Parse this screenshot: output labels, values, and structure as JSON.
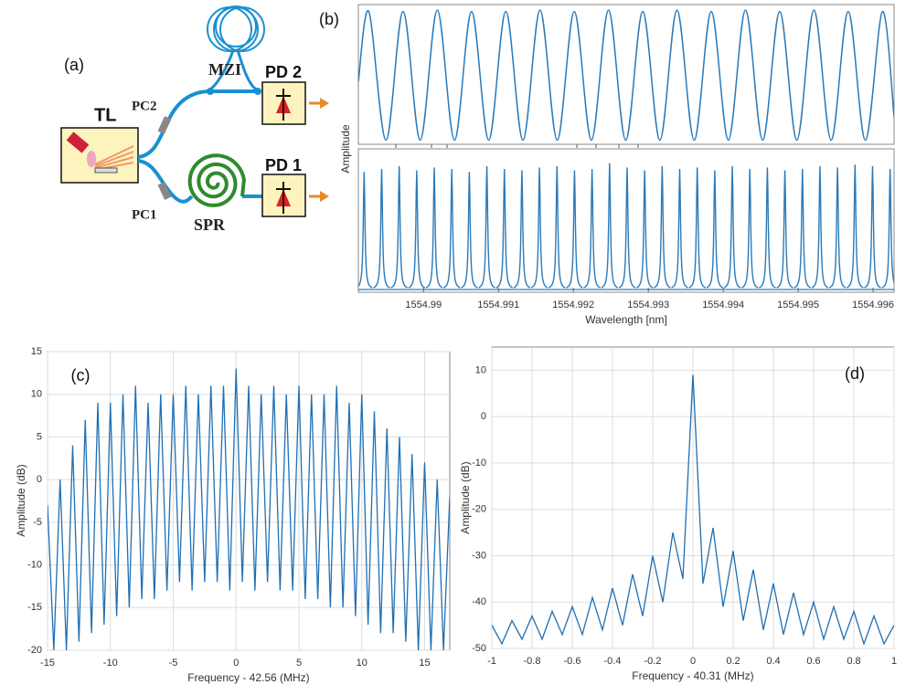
{
  "diagram": {
    "label": "(a)",
    "nodes": {
      "tl": "TL",
      "pc2": "PC2",
      "pc1": "PC1",
      "mzi": "MZI",
      "spr": "SPR",
      "pd2": "PD 2",
      "pd1": "PD 1"
    }
  },
  "chart_data": [
    {
      "type": "line",
      "label": "(b)",
      "y_label": "Amplitude",
      "color": "#2a7ab9",
      "xlim": [
        1554.98913,
        1554.99628
      ],
      "ylim": [
        0,
        1
      ],
      "x": [
        1554.98913,
        1554.98927,
        1554.989499,
        1554.989727,
        1554.989956,
        1554.990184,
        1554.990413,
        1554.990641,
        1554.99087,
        1554.991098,
        1554.991327,
        1554.991555,
        1554.991784,
        1554.992012,
        1554.992241,
        1554.992469,
        1554.992698,
        1554.992926,
        1554.993155,
        1554.993383,
        1554.993612,
        1554.99384,
        1554.994069,
        1554.994297,
        1554.994526,
        1554.994754,
        1554.994983,
        1554.995211,
        1554.99544,
        1554.995668,
        1554.995897,
        1554.996125,
        1554.99628
      ],
      "values": [
        0.45,
        0.95,
        0.03,
        0.95,
        0.03,
        0.96,
        0.03,
        0.95,
        0.03,
        0.95,
        0.03,
        0.96,
        0.03,
        0.95,
        0.03,
        0.96,
        0.03,
        0.95,
        0.03,
        0.96,
        0.03,
        0.95,
        0.03,
        0.96,
        0.03,
        0.95,
        0.03,
        0.96,
        0.03,
        0.95,
        0.03,
        0.95,
        0.2
      ]
    },
    {
      "type": "peaks",
      "x_label": "Wavelength [nm]",
      "color": "#2a7ab9",
      "xlim": [
        1554.98913,
        1554.99628
      ],
      "ylim": [
        0,
        1
      ],
      "xticks": [
        1554.99,
        1554.991,
        1554.992,
        1554.993,
        1554.994,
        1554.995,
        1554.996
      ],
      "x": [
        1554.989207,
        1554.989441,
        1554.989675,
        1554.989909,
        1554.990143,
        1554.990377,
        1554.990611,
        1554.990845,
        1554.991079,
        1554.991313,
        1554.991547,
        1554.991781,
        1554.992015,
        1554.992249,
        1554.992483,
        1554.992717,
        1554.992951,
        1554.993185,
        1554.993419,
        1554.993653,
        1554.993887,
        1554.994121,
        1554.994355,
        1554.994589,
        1554.994823,
        1554.995057,
        1554.995291,
        1554.995525,
        1554.995759,
        1554.995993,
        1554.996227
      ],
      "values": [
        0.84,
        0.86,
        0.88,
        0.85,
        0.87,
        0.86,
        0.84,
        0.88,
        0.86,
        0.85,
        0.87,
        0.88,
        0.85,
        0.86,
        0.9,
        0.87,
        0.85,
        0.88,
        0.86,
        0.87,
        0.85,
        0.88,
        0.86,
        0.87,
        0.85,
        0.86,
        0.88,
        0.87,
        0.89,
        0.88,
        0.86
      ]
    },
    {
      "type": "line",
      "label": "(c)",
      "x_label": "Frequency -  42.56 (MHz)",
      "y_label": "Amplitude (dB)",
      "color": "#1f6fb4",
      "grid": true,
      "xlim": [
        -15,
        17
      ],
      "ylim": [
        -20,
        15
      ],
      "xticks": [
        -15,
        -10,
        -5,
        0,
        5,
        10,
        15
      ],
      "yticks": [
        -20,
        -15,
        -10,
        -5,
        0,
        5,
        10,
        15
      ],
      "x": [
        -15,
        -14.5,
        -14,
        -13.5,
        -13,
        -12.5,
        -12,
        -11.5,
        -11,
        -10.5,
        -10,
        -9.5,
        -9,
        -8.5,
        -8,
        -7.5,
        -7,
        -6.5,
        -6,
        -5.5,
        -5,
        -4.5,
        -4,
        -3.5,
        -3,
        -2.5,
        -2,
        -1.5,
        -1,
        -0.5,
        0,
        0.5,
        1,
        1.5,
        2,
        2.5,
        3,
        3.5,
        4,
        4.5,
        5,
        5.5,
        6,
        6.5,
        7,
        7.5,
        8,
        8.5,
        9,
        9.5,
        10,
        10.5,
        11,
        11.5,
        12,
        12.5,
        13,
        13.5,
        14,
        14.5,
        15,
        15.5,
        16,
        16.5,
        17
      ],
      "values": [
        -3,
        -20,
        0,
        -20,
        4,
        -19,
        7,
        -18,
        9,
        -17,
        9,
        -16,
        10,
        -15,
        11,
        -14,
        9,
        -14,
        10,
        -13,
        10,
        -12,
        11,
        -13,
        10,
        -12,
        11,
        -12,
        11,
        -13,
        13,
        -12,
        11,
        -13,
        10,
        -12,
        11,
        -13,
        10,
        -13,
        11,
        -14,
        10,
        -14,
        10,
        -15,
        11,
        -15,
        9,
        -16,
        10,
        -17,
        8,
        -18,
        6,
        -18,
        5,
        -19,
        3,
        -20,
        2,
        -20,
        0,
        -20,
        -2
      ]
    },
    {
      "type": "line",
      "label": "(d)",
      "x_label": "Frequency -  40.31 (MHz)",
      "y_label": "Amplitude (dB)",
      "color": "#1f6fb4",
      "grid": true,
      "xlim": [
        -1,
        1
      ],
      "ylim": [
        -50,
        15
      ],
      "xticks": [
        -1,
        -0.8,
        -0.6,
        -0.4,
        -0.2,
        0,
        0.2,
        0.4,
        0.6,
        0.8,
        1
      ],
      "yticks": [
        -50,
        -40,
        -30,
        -20,
        -10,
        0,
        10
      ],
      "x": [
        -1,
        -0.95,
        -0.9,
        -0.85,
        -0.8,
        -0.75,
        -0.7,
        -0.65,
        -0.6,
        -0.55,
        -0.5,
        -0.45,
        -0.4,
        -0.35,
        -0.3,
        -0.25,
        -0.2,
        -0.15,
        -0.1,
        -0.05,
        0,
        0.05,
        0.1,
        0.15,
        0.2,
        0.25,
        0.3,
        0.35,
        0.4,
        0.45,
        0.5,
        0.55,
        0.6,
        0.65,
        0.7,
        0.75,
        0.8,
        0.85,
        0.9,
        0.95,
        1
      ],
      "values": [
        -45,
        -49,
        -44,
        -48,
        -43,
        -48,
        -42,
        -47,
        -41,
        -47,
        -39,
        -46,
        -37,
        -45,
        -34,
        -43,
        -30,
        -40,
        -25,
        -35,
        9,
        -36,
        -24,
        -41,
        -29,
        -44,
        -33,
        -46,
        -36,
        -47,
        -38,
        -47,
        -40,
        -48,
        -41,
        -48,
        -42,
        -49,
        -43,
        -49,
        -45
      ]
    }
  ]
}
